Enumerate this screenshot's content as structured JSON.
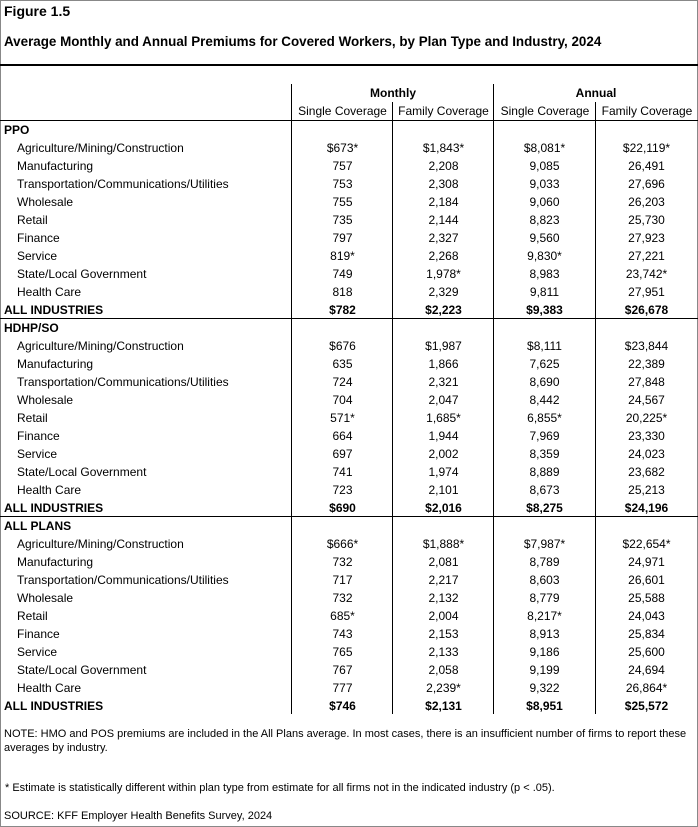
{
  "figure_label": "Figure 1.5",
  "title": "Average Monthly and Annual Premiums for Covered Workers, by Plan Type and Industry, 2024",
  "header": {
    "groups": [
      "Monthly",
      "Annual"
    ],
    "columns": [
      "Single Coverage",
      "Family Coverage",
      "Single Coverage",
      "Family Coverage"
    ]
  },
  "sections": [
    {
      "name": "PPO",
      "rows": [
        {
          "label": "Agriculture/Mining/Construction",
          "values": [
            "$673*",
            "$1,843*",
            "$8,081*",
            "$22,119*"
          ]
        },
        {
          "label": "Manufacturing",
          "values": [
            "757",
            "2,208",
            "9,085",
            "26,491"
          ]
        },
        {
          "label": "Transportation/Communications/Utilities",
          "values": [
            "753",
            "2,308",
            "9,033",
            "27,696"
          ]
        },
        {
          "label": "Wholesale",
          "values": [
            "755",
            "2,184",
            "9,060",
            "26,203"
          ]
        },
        {
          "label": "Retail",
          "values": [
            "735",
            "2,144",
            "8,823",
            "25,730"
          ]
        },
        {
          "label": "Finance",
          "values": [
            "797",
            "2,327",
            "9,560",
            "27,923"
          ]
        },
        {
          "label": "Service",
          "values": [
            "819*",
            "2,268",
            "9,830*",
            "27,221"
          ]
        },
        {
          "label": "State/Local Government",
          "values": [
            "749",
            "1,978*",
            "8,983",
            "23,742*"
          ]
        },
        {
          "label": "Health Care",
          "values": [
            "818",
            "2,329",
            "9,811",
            "27,951"
          ]
        }
      ],
      "total": {
        "label": "ALL INDUSTRIES",
        "values": [
          "$782",
          "$2,223",
          "$9,383",
          "$26,678"
        ]
      }
    },
    {
      "name": "HDHP/SO",
      "rows": [
        {
          "label": "Agriculture/Mining/Construction",
          "values": [
            "$676",
            "$1,987",
            "$8,111",
            "$23,844"
          ]
        },
        {
          "label": "Manufacturing",
          "values": [
            "635",
            "1,866",
            "7,625",
            "22,389"
          ]
        },
        {
          "label": "Transportation/Communications/Utilities",
          "values": [
            "724",
            "2,321",
            "8,690",
            "27,848"
          ]
        },
        {
          "label": "Wholesale",
          "values": [
            "704",
            "2,047",
            "8,442",
            "24,567"
          ]
        },
        {
          "label": "Retail",
          "values": [
            "571*",
            "1,685*",
            "6,855*",
            "20,225*"
          ]
        },
        {
          "label": "Finance",
          "values": [
            "664",
            "1,944",
            "7,969",
            "23,330"
          ]
        },
        {
          "label": "Service",
          "values": [
            "697",
            "2,002",
            "8,359",
            "24,023"
          ]
        },
        {
          "label": "State/Local Government",
          "values": [
            "741",
            "1,974",
            "8,889",
            "23,682"
          ]
        },
        {
          "label": "Health Care",
          "values": [
            "723",
            "2,101",
            "8,673",
            "25,213"
          ]
        }
      ],
      "total": {
        "label": "ALL INDUSTRIES",
        "values": [
          "$690",
          "$2,016",
          "$8,275",
          "$24,196"
        ]
      }
    },
    {
      "name": "ALL PLANS",
      "rows": [
        {
          "label": "Agriculture/Mining/Construction",
          "values": [
            "$666*",
            "$1,888*",
            "$7,987*",
            "$22,654*"
          ]
        },
        {
          "label": "Manufacturing",
          "values": [
            "732",
            "2,081",
            "8,789",
            "24,971"
          ]
        },
        {
          "label": "Transportation/Communications/Utilities",
          "values": [
            "717",
            "2,217",
            "8,603",
            "26,601"
          ]
        },
        {
          "label": "Wholesale",
          "values": [
            "732",
            "2,132",
            "8,779",
            "25,588"
          ]
        },
        {
          "label": "Retail",
          "values": [
            "685*",
            "2,004",
            "8,217*",
            "24,043"
          ]
        },
        {
          "label": "Finance",
          "values": [
            "743",
            "2,153",
            "8,913",
            "25,834"
          ]
        },
        {
          "label": "Service",
          "values": [
            "765",
            "2,133",
            "9,186",
            "25,600"
          ]
        },
        {
          "label": "State/Local Government",
          "values": [
            "767",
            "2,058",
            "9,199",
            "24,694"
          ]
        },
        {
          "label": "Health Care",
          "values": [
            "777",
            "2,239*",
            "9,322",
            "26,864*"
          ]
        }
      ],
      "total": {
        "label": "ALL INDUSTRIES",
        "values": [
          "$746",
          "$2,131",
          "$8,951",
          "$25,572"
        ]
      }
    }
  ],
  "note": "NOTE: HMO and POS premiums are included in the All Plans average. In most cases, there is an insufficient number of firms to report these averages by industry.",
  "footnote": "* Estimate is statistically different within plan type from estimate for all firms not in the indicated industry (p < .05).",
  "source": "SOURCE: KFF Employer Health Benefits Survey, 2024"
}
